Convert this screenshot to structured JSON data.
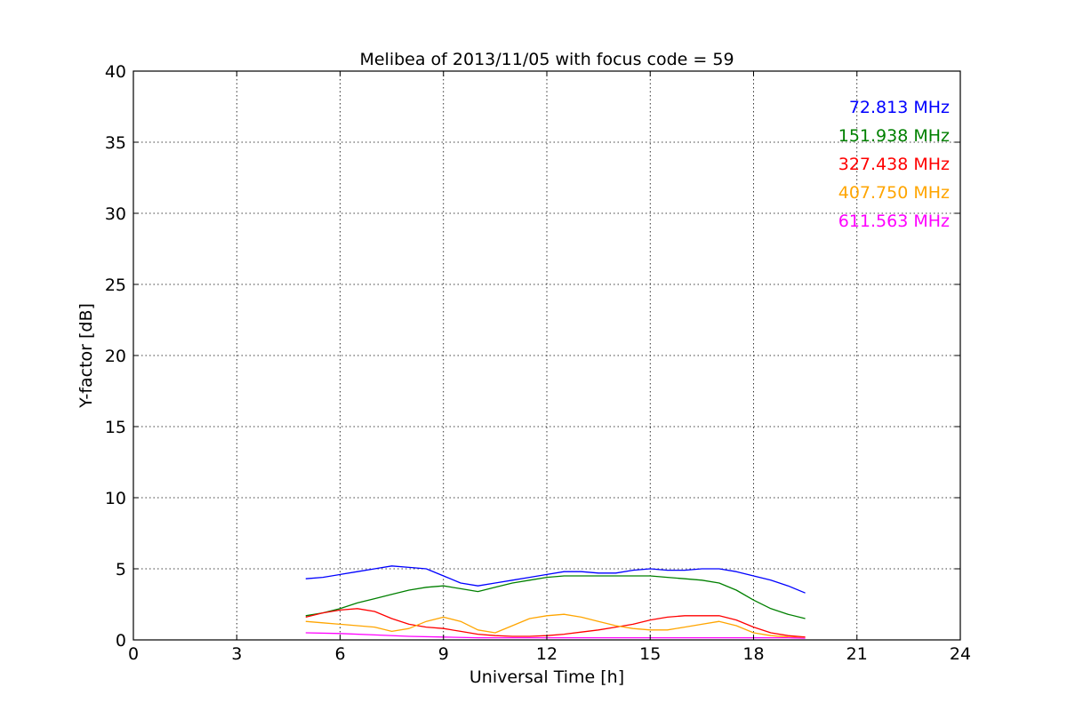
{
  "chart_data": {
    "type": "line",
    "title": "Melibea of 2013/11/05 with focus code = 59",
    "xlabel": "Universal Time [h]",
    "ylabel": "Y-factor [dB]",
    "xlim": [
      0,
      24
    ],
    "ylim": [
      0,
      40
    ],
    "xticks": [
      "0",
      "3",
      "6",
      "9",
      "12",
      "15",
      "18",
      "21",
      "24"
    ],
    "yticks": [
      "0",
      "5",
      "10",
      "15",
      "20",
      "25",
      "30",
      "35",
      "40"
    ],
    "grid": true,
    "legend_position": "top-right",
    "series": [
      {
        "name": "72.813 MHz",
        "color": "#0000ff",
        "x": [
          5.0,
          5.5,
          6.0,
          6.5,
          7.0,
          7.5,
          8.0,
          8.5,
          9.0,
          9.5,
          10.0,
          10.5,
          11.0,
          11.5,
          12.0,
          12.5,
          13.0,
          13.5,
          14.0,
          14.5,
          15.0,
          15.5,
          16.0,
          16.5,
          17.0,
          17.5,
          18.0,
          18.5,
          19.0,
          19.5
        ],
        "y": [
          4.3,
          4.4,
          4.6,
          4.8,
          5.0,
          5.2,
          5.1,
          5.0,
          4.5,
          4.0,
          3.8,
          4.0,
          4.2,
          4.4,
          4.6,
          4.8,
          4.8,
          4.7,
          4.7,
          4.9,
          5.0,
          4.9,
          4.9,
          5.0,
          5.0,
          4.8,
          4.5,
          4.2,
          3.8,
          3.3
        ]
      },
      {
        "name": "151.938 MHz",
        "color": "#008000",
        "x": [
          5.0,
          5.5,
          6.0,
          6.5,
          7.0,
          7.5,
          8.0,
          8.5,
          9.0,
          9.5,
          10.0,
          10.5,
          11.0,
          11.5,
          12.0,
          12.5,
          13.0,
          13.5,
          14.0,
          14.5,
          15.0,
          15.5,
          16.0,
          16.5,
          17.0,
          17.5,
          18.0,
          18.5,
          19.0,
          19.5
        ],
        "y": [
          1.7,
          1.9,
          2.2,
          2.6,
          2.9,
          3.2,
          3.5,
          3.7,
          3.8,
          3.6,
          3.4,
          3.7,
          4.0,
          4.2,
          4.4,
          4.5,
          4.5,
          4.5,
          4.5,
          4.5,
          4.5,
          4.4,
          4.3,
          4.2,
          4.0,
          3.5,
          2.8,
          2.2,
          1.8,
          1.5
        ]
      },
      {
        "name": "327.438 MHz",
        "color": "#ff0000",
        "x": [
          5.0,
          5.5,
          6.0,
          6.5,
          7.0,
          7.5,
          8.0,
          8.5,
          9.0,
          9.5,
          10.0,
          10.5,
          11.0,
          11.5,
          12.0,
          12.5,
          13.0,
          13.5,
          14.0,
          14.5,
          15.0,
          15.5,
          16.0,
          16.5,
          17.0,
          17.5,
          18.0,
          18.5,
          19.0,
          19.5
        ],
        "y": [
          1.6,
          1.9,
          2.1,
          2.2,
          2.0,
          1.5,
          1.1,
          0.9,
          0.8,
          0.6,
          0.4,
          0.3,
          0.25,
          0.25,
          0.3,
          0.4,
          0.55,
          0.7,
          0.9,
          1.1,
          1.4,
          1.6,
          1.7,
          1.7,
          1.7,
          1.4,
          0.9,
          0.5,
          0.3,
          0.2
        ]
      },
      {
        "name": "407.750 MHz",
        "color": "#ffa500",
        "x": [
          5.0,
          5.5,
          6.0,
          6.5,
          7.0,
          7.5,
          8.0,
          8.5,
          9.0,
          9.5,
          10.0,
          10.5,
          11.0,
          11.5,
          12.0,
          12.5,
          13.0,
          13.5,
          14.0,
          14.5,
          15.0,
          15.5,
          16.0,
          16.5,
          17.0,
          17.5,
          18.0,
          18.5,
          19.0,
          19.5
        ],
        "y": [
          1.3,
          1.2,
          1.1,
          1.0,
          0.9,
          0.6,
          0.8,
          1.3,
          1.6,
          1.3,
          0.7,
          0.5,
          1.0,
          1.5,
          1.7,
          1.8,
          1.6,
          1.3,
          1.0,
          0.8,
          0.7,
          0.7,
          0.9,
          1.1,
          1.3,
          1.0,
          0.5,
          0.3,
          0.2,
          0.15
        ]
      },
      {
        "name": "611.563 MHz",
        "color": "#ff00ff",
        "x": [
          5.0,
          6.0,
          7.0,
          8.0,
          9.0,
          10.0,
          11.0,
          12.0,
          13.0,
          14.0,
          15.0,
          16.0,
          17.0,
          18.0,
          19.0,
          19.5
        ],
        "y": [
          0.5,
          0.45,
          0.35,
          0.25,
          0.2,
          0.15,
          0.15,
          0.15,
          0.15,
          0.15,
          0.15,
          0.15,
          0.15,
          0.15,
          0.15,
          0.12
        ]
      }
    ]
  }
}
